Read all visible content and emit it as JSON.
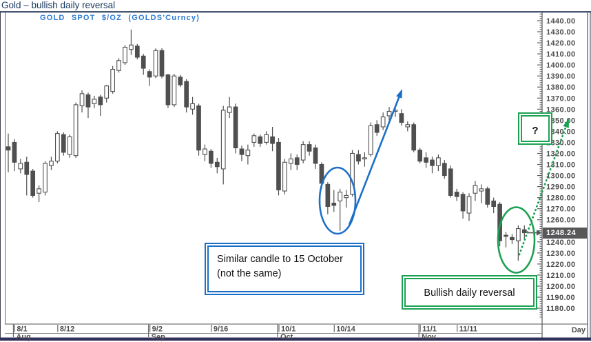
{
  "page_title": "Gold – bullish daily reversal",
  "chart_data": {
    "type": "candlestick",
    "title": "GOLD SPOT $/OZ (GOLDS'Curncy)",
    "y_axis": {
      "side": "right",
      "min": 1180,
      "max": 1440,
      "step": 10,
      "minor_step": 2,
      "tick_labels": [
        "1440.00",
        "1430.00",
        "1420.00",
        "1410.00",
        "1400.00",
        "1390.00",
        "1380.00",
        "1370.00",
        "1360.00",
        "1350.00",
        "1340.00",
        "1330.00",
        "1320.00",
        "1310.00",
        "1300.00",
        "1290.00",
        "1280.00",
        "1270.00",
        "1260.00",
        "1250.00",
        "1240.00",
        "1230.00",
        "1220.00",
        "1210.00",
        "1200.00",
        "1190.00",
        "1180.00"
      ]
    },
    "x_axis": {
      "unit_label": "Day",
      "date_ticks": [
        {
          "label": "8/1",
          "i": 1
        },
        {
          "label": "8/12",
          "i": 8
        },
        {
          "label": "9/2",
          "i": 23
        },
        {
          "label": "9/16",
          "i": 33
        },
        {
          "label": "10/1",
          "i": 44
        },
        {
          "label": "10/14",
          "i": 53
        },
        {
          "label": "11/1",
          "i": 67
        },
        {
          "label": "11/11",
          "i": 73
        }
      ],
      "month_ticks": [
        {
          "label": "Aug",
          "i": 1
        },
        {
          "label": "Sep",
          "i": 23
        },
        {
          "label": "Oct",
          "i": 44
        },
        {
          "label": "Nov",
          "i": 67
        }
      ]
    },
    "last_price_label": "1248.24",
    "candles_ohlc": [
      [
        1326,
        1338,
        1303,
        1323
      ],
      [
        1330,
        1333,
        1304,
        1312
      ],
      [
        1306,
        1315,
        1302,
        1311
      ],
      [
        1312,
        1317,
        1282,
        1301
      ],
      [
        1304,
        1306,
        1280,
        1282
      ],
      [
        1284,
        1291,
        1276,
        1288
      ],
      [
        1285,
        1313,
        1282,
        1311
      ],
      [
        1309,
        1317,
        1305,
        1313
      ],
      [
        1313,
        1340,
        1311,
        1338
      ],
      [
        1337,
        1339,
        1318,
        1321
      ],
      [
        1319,
        1337,
        1316,
        1335
      ],
      [
        1318,
        1366,
        1316,
        1364
      ],
      [
        1363,
        1377,
        1357,
        1374
      ],
      [
        1373,
        1375,
        1352,
        1362
      ],
      [
        1365,
        1372,
        1361,
        1369
      ],
      [
        1371,
        1373,
        1354,
        1364
      ],
      [
        1370,
        1382,
        1366,
        1381
      ],
      [
        1376,
        1399,
        1374,
        1396
      ],
      [
        1395,
        1406,
        1393,
        1404
      ],
      [
        1402,
        1418,
        1400,
        1416
      ],
      [
        1414,
        1432,
        1409,
        1418
      ],
      [
        1417,
        1419,
        1405,
        1407
      ],
      [
        1408,
        1410,
        1391,
        1397
      ],
      [
        1394,
        1396,
        1381,
        1389
      ],
      [
        1390,
        1415,
        1388,
        1413
      ],
      [
        1413,
        1415,
        1388,
        1390
      ],
      [
        1391,
        1392,
        1361,
        1364
      ],
      [
        1364,
        1392,
        1362,
        1390
      ],
      [
        1389,
        1391,
        1380,
        1382
      ],
      [
        1385,
        1387,
        1357,
        1362
      ],
      [
        1360,
        1371,
        1355,
        1365
      ],
      [
        1363,
        1365,
        1318,
        1323
      ],
      [
        1319,
        1328,
        1313,
        1324
      ],
      [
        1322,
        1324,
        1307,
        1311
      ],
      [
        1312,
        1316,
        1302,
        1308
      ],
      [
        1306,
        1363,
        1292,
        1359
      ],
      [
        1357,
        1371,
        1352,
        1362
      ],
      [
        1362,
        1365,
        1320,
        1325
      ],
      [
        1324,
        1327,
        1313,
        1319
      ],
      [
        1318,
        1328,
        1310,
        1323
      ],
      [
        1330,
        1338,
        1326,
        1336
      ],
      [
        1335,
        1337,
        1326,
        1329
      ],
      [
        1330,
        1340,
        1328,
        1337
      ],
      [
        1335,
        1344,
        1322,
        1329
      ],
      [
        1330,
        1334,
        1282,
        1287
      ],
      [
        1286,
        1315,
        1283,
        1312
      ],
      [
        1311,
        1320,
        1305,
        1315
      ],
      [
        1316,
        1319,
        1305,
        1310
      ],
      [
        1314,
        1331,
        1311,
        1328
      ],
      [
        1328,
        1331,
        1318,
        1322
      ],
      [
        1325,
        1328,
        1306,
        1311
      ],
      [
        1310,
        1312,
        1288,
        1293
      ],
      [
        1292,
        1294,
        1265,
        1272
      ],
      [
        1275,
        1287,
        1267,
        1273
      ],
      [
        1277,
        1288,
        1250,
        1285
      ],
      [
        1280,
        1287,
        1271,
        1282
      ],
      [
        1283,
        1323,
        1281,
        1320
      ],
      [
        1319,
        1323,
        1310,
        1313
      ],
      [
        1315,
        1321,
        1308,
        1316
      ],
      [
        1319,
        1348,
        1317,
        1345
      ],
      [
        1346,
        1350,
        1336,
        1339
      ],
      [
        1344,
        1357,
        1341,
        1353
      ],
      [
        1354,
        1362,
        1350,
        1358
      ],
      [
        1359,
        1363,
        1353,
        1359
      ],
      [
        1356,
        1360,
        1345,
        1348
      ],
      [
        1344,
        1349,
        1340,
        1346
      ],
      [
        1346,
        1348,
        1321,
        1323
      ],
      [
        1323,
        1325,
        1311,
        1313
      ],
      [
        1316,
        1321,
        1307,
        1312
      ],
      [
        1314,
        1317,
        1302,
        1309
      ],
      [
        1309,
        1319,
        1304,
        1316
      ],
      [
        1311,
        1314,
        1297,
        1300
      ],
      [
        1306,
        1309,
        1280,
        1282
      ],
      [
        1285,
        1288,
        1277,
        1281
      ],
      [
        1283,
        1285,
        1261,
        1268
      ],
      [
        1266,
        1284,
        1259,
        1281
      ],
      [
        1284,
        1295,
        1277,
        1291
      ],
      [
        1286,
        1292,
        1275,
        1288
      ],
      [
        1288,
        1290,
        1271,
        1274
      ],
      [
        1277,
        1280,
        1266,
        1272
      ],
      [
        1274,
        1276,
        1236,
        1241
      ],
      [
        1246,
        1249,
        1235,
        1245
      ],
      [
        1244,
        1247,
        1238,
        1242
      ],
      [
        1241,
        1255,
        1223,
        1252
      ],
      [
        1251,
        1255,
        1243,
        1248.24
      ]
    ]
  },
  "annotations": {
    "similar_candle_note": "Similar candle to 15 October (not the same)",
    "bullish_reversal_note": "Bullish daily reversal",
    "question_mark": "?"
  },
  "colors": {
    "title_navy": "#17365D",
    "header_blue": "#2F7BD4",
    "candle_gray": "#4F4F4F",
    "axis_text_gray": "#4D4D4D",
    "tick_gray": "#5A5A5A",
    "price_box_bg": "#58585A",
    "annotation_blue": "#1C6FC8",
    "annotation_green": "#1CA152",
    "frame_navy": "#30305A"
  }
}
